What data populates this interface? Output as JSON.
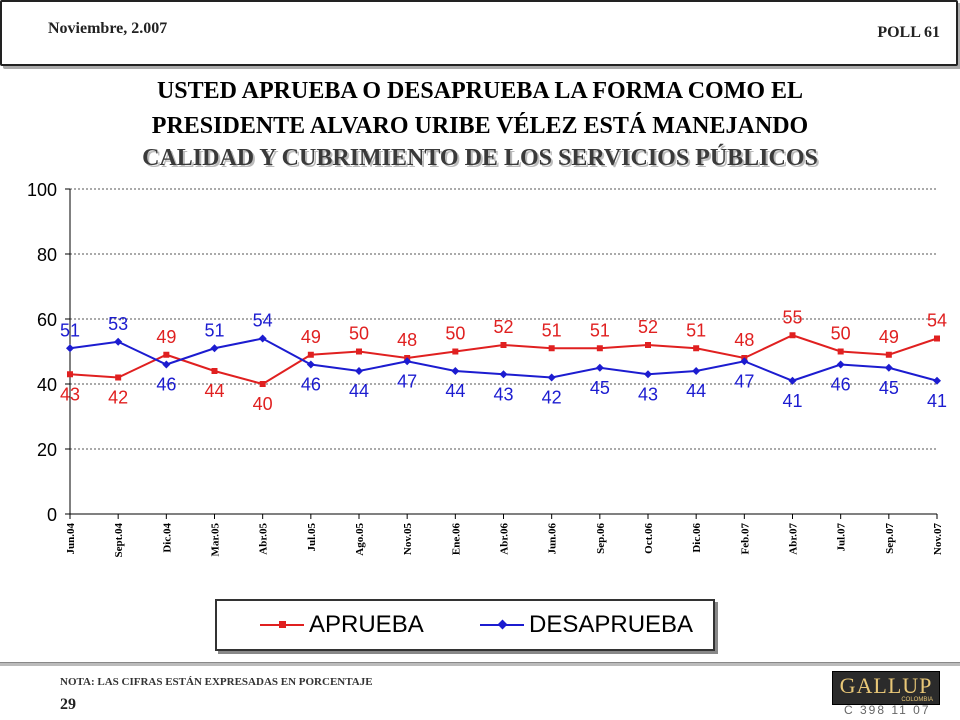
{
  "header": {
    "date": "Noviembre, 2.007",
    "poll": "POLL 61"
  },
  "title_lines": [
    "USTED APRUEBA O DESAPRUEBA LA FORMA COMO EL",
    "PRESIDENTE ALVARO URIBE VÉLEZ ESTÁ MANEJANDO",
    "CALIDAD Y CUBRIMIENTO DE LOS SERVICIOS PÚBLICOS"
  ],
  "chart_data": {
    "type": "line",
    "categories": [
      "Jun.04",
      "Sept.04",
      "Dic.04",
      "Mar.05",
      "Abr.05",
      "Jul.05",
      "Ago.05",
      "Nov.05",
      "Ene.06",
      "Abr.06",
      "Jun.06",
      "Sep.06",
      "Oct.06",
      "Dic.06",
      "Feb.07",
      "Abr.07",
      "Jul.07",
      "Sep.07",
      "Nov.07"
    ],
    "series": [
      {
        "name": "APRUEBA",
        "color": "#e02020",
        "marker": "square",
        "values": [
          43,
          42,
          49,
          44,
          40,
          49,
          50,
          48,
          50,
          52,
          51,
          51,
          52,
          51,
          48,
          55,
          50,
          49,
          54
        ]
      },
      {
        "name": "DESAPRUEBA",
        "color": "#1c1cd0",
        "marker": "diamond",
        "values": [
          51,
          53,
          46,
          51,
          54,
          46,
          44,
          47,
          44,
          43,
          42,
          45,
          43,
          44,
          47,
          41,
          46,
          45,
          41
        ]
      }
    ],
    "ylim": [
      0,
      100
    ],
    "yticks": [
      0,
      20,
      40,
      60,
      80,
      100
    ],
    "grid": true,
    "legend": "bottom"
  },
  "footer": {
    "note": "NOTA: LAS CIFRAS ESTÁN EXPRESADAS EN PORCENTAJE",
    "page": "29",
    "logo": "GALLUP",
    "logo_sub": "COLOMBIA",
    "code": "C 398 11 07"
  }
}
